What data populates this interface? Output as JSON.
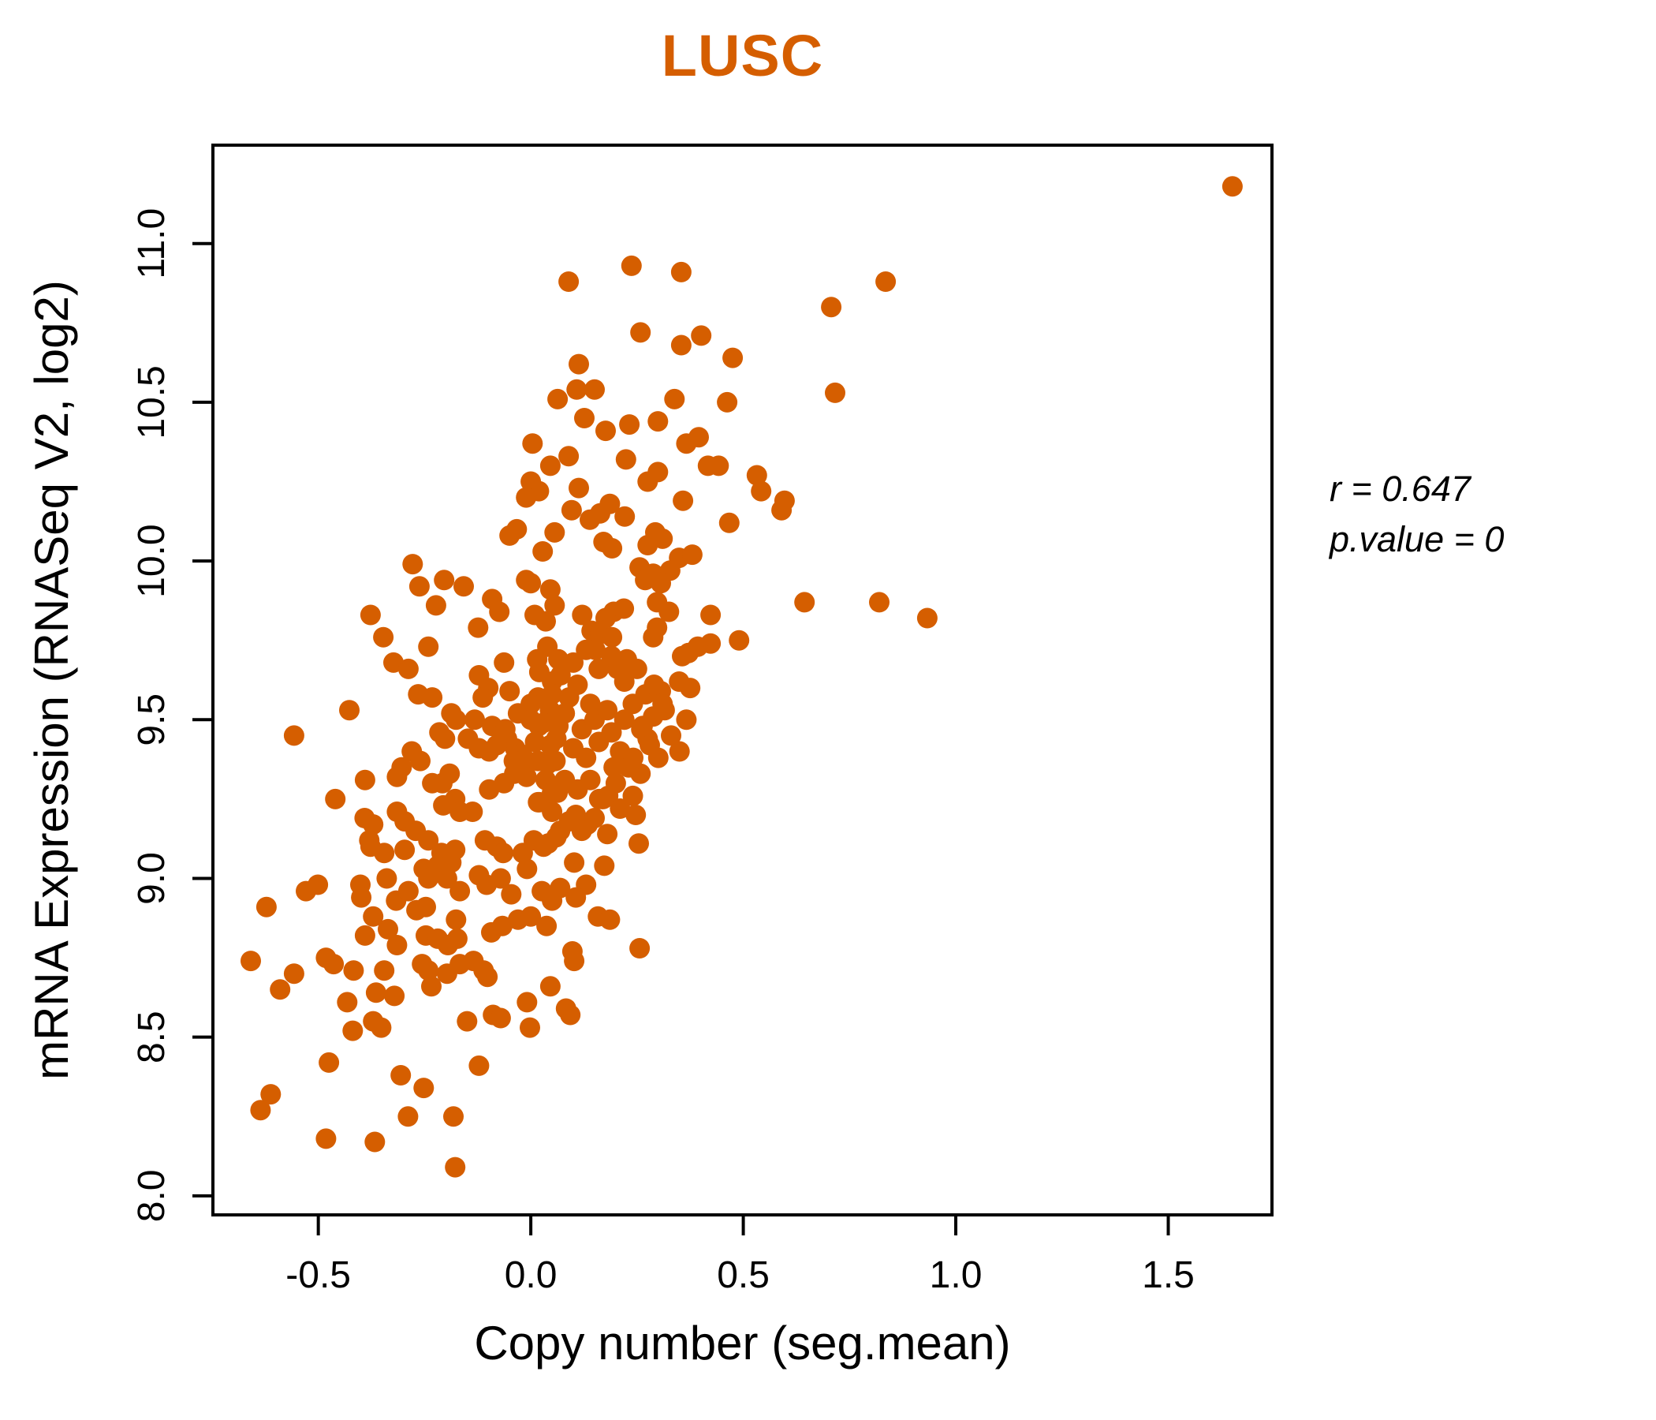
{
  "figure": {
    "title": "LUSC",
    "title_color": "#D55E00"
  },
  "chart_data": {
    "type": "scatter",
    "title": "LUSC",
    "xlabel": "Copy number (seg.mean)",
    "ylabel": "mRNA Expression (RNASeq V2, log2)",
    "x_ticks": {
      "values": [
        -0.5,
        0.0,
        0.5,
        1.0,
        1.5
      ],
      "labels": [
        "-0.5",
        "0.0",
        "0.5",
        "1.0",
        "1.5"
      ]
    },
    "y_ticks": {
      "values": [
        8.0,
        8.5,
        9.0,
        9.5,
        10.0,
        10.5,
        11.0
      ],
      "labels": [
        "8.0",
        "8.5",
        "9.0",
        "9.5",
        "10.0",
        "10.5",
        "11.0"
      ]
    },
    "xlim": [
      -0.748,
      1.744
    ],
    "ylim": [
      7.94,
      11.31
    ],
    "grid": false,
    "legend": "none",
    "point_color": "#D55E00",
    "axis_color": "#000000",
    "point_radius": 13,
    "annotation": {
      "r": 0.647,
      "p_value": 0,
      "r_label": "r = 0.647",
      "p_label": "p.value = 0"
    },
    "points": [
      [
        1.651,
        11.18
      ],
      [
        0.089,
        10.88
      ],
      [
        0.237,
        10.93
      ],
      [
        0.354,
        10.91
      ],
      [
        0.835,
        10.88
      ],
      [
        0.707,
        10.8
      ],
      [
        0.258,
        10.72
      ],
      [
        0.354,
        10.68
      ],
      [
        0.401,
        10.71
      ],
      [
        0.475,
        10.64
      ],
      [
        0.113,
        10.62
      ],
      [
        0.108,
        10.54
      ],
      [
        0.15,
        10.54
      ],
      [
        0.716,
        10.53
      ],
      [
        0.338,
        10.51
      ],
      [
        0.462,
        10.5
      ],
      [
        0.126,
        10.45
      ],
      [
        0.176,
        10.41
      ],
      [
        0.232,
        10.43
      ],
      [
        0.299,
        10.44
      ],
      [
        0.366,
        10.37
      ],
      [
        0.395,
        10.39
      ],
      [
        0.224,
        10.32
      ],
      [
        0.089,
        10.33
      ],
      [
        0.299,
        10.28
      ],
      [
        0.275,
        10.25
      ],
      [
        0.417,
        10.3
      ],
      [
        0.442,
        10.3
      ],
      [
        0.532,
        10.27
      ],
      [
        0.542,
        10.22
      ],
      [
        0.113,
        10.23
      ],
      [
        0.358,
        10.19
      ],
      [
        0.597,
        10.19
      ],
      [
        0.063,
        10.51
      ],
      [
        0.004,
        10.37
      ],
      [
        0.046,
        10.3
      ],
      [
        0.0,
        10.25
      ],
      [
        0.019,
        10.22
      ],
      [
        -0.011,
        10.2
      ],
      [
        -0.278,
        9.99
      ],
      [
        -0.262,
        9.92
      ],
      [
        -0.204,
        9.94
      ],
      [
        -0.223,
        9.86
      ],
      [
        -0.158,
        9.92
      ],
      [
        -0.377,
        9.83
      ],
      [
        -0.347,
        9.76
      ],
      [
        -0.124,
        9.79
      ],
      [
        -0.241,
        9.73
      ],
      [
        -0.323,
        9.68
      ],
      [
        -0.288,
        9.66
      ],
      [
        -0.063,
        9.68
      ],
      [
        -0.091,
        9.88
      ],
      [
        -0.074,
        9.84
      ],
      [
        -0.033,
        10.1
      ],
      [
        -0.05,
        10.08
      ],
      [
        0.056,
        10.09
      ],
      [
        0.028,
        10.03
      ],
      [
        0.0,
        9.93
      ],
      [
        0.046,
        9.91
      ],
      [
        -0.011,
        9.94
      ],
      [
        -0.232,
        9.57
      ],
      [
        -0.265,
        9.58
      ],
      [
        -0.187,
        9.52
      ],
      [
        -0.176,
        9.5
      ],
      [
        -0.215,
        9.46
      ],
      [
        -0.202,
        9.44
      ],
      [
        -0.122,
        9.64
      ],
      [
        -0.1,
        9.6
      ],
      [
        -0.113,
        9.57
      ],
      [
        -0.132,
        9.5
      ],
      [
        -0.091,
        9.48
      ],
      [
        -0.056,
        9.44
      ],
      [
        -0.037,
        9.41
      ],
      [
        -0.427,
        9.53
      ],
      [
        -0.557,
        9.45
      ],
      [
        -0.28,
        9.4
      ],
      [
        -0.26,
        9.37
      ],
      [
        -0.304,
        9.35
      ],
      [
        -0.315,
        9.32
      ],
      [
        -0.191,
        9.33
      ],
      [
        -0.208,
        9.3
      ],
      [
        -0.232,
        9.3
      ],
      [
        -0.39,
        9.31
      ],
      [
        -0.46,
        9.25
      ],
      [
        -0.391,
        9.19
      ],
      [
        -0.371,
        9.17
      ],
      [
        -0.38,
        9.12
      ],
      [
        -0.315,
        9.21
      ],
      [
        -0.297,
        9.18
      ],
      [
        -0.271,
        9.15
      ],
      [
        -0.241,
        9.12
      ],
      [
        -0.206,
        9.23
      ],
      [
        -0.178,
        9.25
      ],
      [
        -0.167,
        9.21
      ],
      [
        -0.137,
        9.21
      ],
      [
        -0.098,
        9.28
      ],
      [
        -0.063,
        9.3
      ],
      [
        -0.039,
        9.33
      ],
      [
        -0.019,
        9.36
      ],
      [
        -0.098,
        9.4
      ],
      [
        -0.148,
        9.44
      ],
      [
        -0.122,
        9.41
      ],
      [
        0.009,
        9.83
      ],
      [
        0.035,
        9.81
      ],
      [
        0.056,
        9.86
      ],
      [
        0.039,
        9.73
      ],
      [
        0.015,
        9.69
      ],
      [
        0.065,
        9.69
      ],
      [
        0.05,
        9.62
      ],
      [
        0.017,
        9.57
      ],
      [
        0.045,
        9.53
      ],
      [
        0.019,
        9.48
      ],
      [
        0.065,
        9.48
      ],
      [
        0.046,
        9.42
      ],
      [
        0.017,
        9.37
      ],
      [
        0.058,
        9.37
      ],
      [
        0.035,
        9.31
      ],
      [
        0.063,
        9.27
      ],
      [
        0.017,
        9.24
      ],
      [
        0.05,
        9.21
      ],
      [
        0.007,
        9.12
      ],
      [
        0.041,
        9.11
      ],
      [
        -0.019,
        9.08
      ],
      [
        0.069,
        9.15
      ],
      [
        -0.377,
        9.1
      ],
      [
        -0.345,
        9.08
      ],
      [
        -0.297,
        9.09
      ],
      [
        -0.21,
        9.08
      ],
      [
        -0.178,
        9.09
      ],
      [
        -0.108,
        9.12
      ],
      [
        -0.08,
        9.1
      ],
      [
        -0.065,
        9.08
      ],
      [
        0.644,
        9.87
      ],
      [
        0.82,
        9.87
      ],
      [
        0.933,
        9.82
      ],
      [
        0.423,
        9.83
      ],
      [
        0.49,
        9.75
      ],
      [
        0.467,
        10.12
      ],
      [
        0.59,
        10.16
      ],
      [
        0.293,
        10.09
      ],
      [
        0.31,
        10.07
      ],
      [
        0.275,
        10.05
      ],
      [
        0.349,
        10.01
      ],
      [
        0.38,
        10.02
      ],
      [
        0.256,
        9.98
      ],
      [
        0.288,
        9.96
      ],
      [
        0.328,
        9.97
      ],
      [
        0.306,
        9.93
      ],
      [
        0.269,
        9.94
      ],
      [
        0.186,
        10.18
      ],
      [
        0.221,
        10.14
      ],
      [
        0.163,
        10.15
      ],
      [
        0.139,
        10.13
      ],
      [
        0.096,
        10.16
      ],
      [
        0.171,
        10.06
      ],
      [
        0.191,
        10.04
      ],
      [
        0.297,
        9.87
      ],
      [
        0.325,
        9.84
      ],
      [
        0.297,
        9.79
      ],
      [
        0.288,
        9.76
      ],
      [
        0.423,
        9.74
      ],
      [
        0.371,
        9.71
      ],
      [
        0.393,
        9.73
      ],
      [
        0.226,
        9.69
      ],
      [
        0.204,
        9.66
      ],
      [
        0.356,
        9.7
      ],
      [
        0.195,
        9.84
      ],
      [
        0.176,
        9.82
      ],
      [
        0.219,
        9.85
      ],
      [
        0.143,
        9.78
      ],
      [
        0.121,
        9.83
      ],
      [
        0.163,
        9.77
      ],
      [
        0.191,
        9.76
      ],
      [
        0.152,
        9.72
      ],
      [
        0.306,
        9.59
      ],
      [
        0.349,
        9.62
      ],
      [
        0.375,
        9.6
      ],
      [
        0.315,
        9.53
      ],
      [
        0.288,
        9.51
      ],
      [
        0.366,
        9.5
      ],
      [
        0.263,
        9.48
      ],
      [
        0.275,
        9.44
      ],
      [
        0.241,
        9.38
      ],
      [
        0.258,
        9.33
      ],
      [
        0.195,
        9.35
      ],
      [
        0.161,
        9.25
      ],
      [
        0.182,
        9.26
      ],
      [
        0.247,
        9.2
      ],
      [
        0.134,
        9.17
      ],
      [
        0.106,
        9.2
      ],
      [
        0.254,
        9.11
      ],
      [
        -0.622,
        8.91
      ],
      [
        -0.529,
        8.96
      ],
      [
        -0.501,
        8.98
      ],
      [
        -0.401,
        8.98
      ],
      [
        -0.399,
        8.94
      ],
      [
        -0.371,
        8.88
      ],
      [
        -0.339,
        9.0
      ],
      [
        -0.317,
        8.93
      ],
      [
        -0.288,
        8.96
      ],
      [
        -0.252,
        9.03
      ],
      [
        -0.241,
        9.0
      ],
      [
        -0.219,
        9.04
      ],
      [
        -0.187,
        9.05
      ],
      [
        -0.197,
        9.0
      ],
      [
        -0.167,
        8.96
      ],
      [
        -0.269,
        8.9
      ],
      [
        -0.247,
        8.91
      ],
      [
        -0.176,
        8.87
      ],
      [
        -0.122,
        9.01
      ],
      [
        -0.104,
        8.98
      ],
      [
        -0.071,
        9.0
      ],
      [
        -0.046,
        8.95
      ],
      [
        -0.03,
        8.87
      ],
      [
        -0.009,
        9.03
      ],
      [
        0.026,
        8.96
      ],
      [
        0.05,
        8.93
      ],
      [
        0.069,
        8.97
      ],
      [
        0.0,
        8.88
      ],
      [
        0.037,
        8.85
      ],
      [
        -0.39,
        8.82
      ],
      [
        -0.336,
        8.84
      ],
      [
        -0.315,
        8.79
      ],
      [
        -0.247,
        8.82
      ],
      [
        -0.219,
        8.81
      ],
      [
        -0.195,
        8.79
      ],
      [
        -0.173,
        8.81
      ],
      [
        -0.093,
        8.83
      ],
      [
        -0.067,
        8.85
      ],
      [
        -0.659,
        8.74
      ],
      [
        -0.557,
        8.7
      ],
      [
        -0.59,
        8.65
      ],
      [
        -0.482,
        8.75
      ],
      [
        -0.464,
        8.73
      ],
      [
        -0.417,
        8.71
      ],
      [
        -0.345,
        8.71
      ],
      [
        -0.256,
        8.73
      ],
      [
        -0.241,
        8.71
      ],
      [
        -0.234,
        8.66
      ],
      [
        -0.197,
        8.7
      ],
      [
        -0.167,
        8.73
      ],
      [
        -0.135,
        8.74
      ],
      [
        -0.111,
        8.71
      ],
      [
        -0.102,
        8.69
      ],
      [
        -0.321,
        8.63
      ],
      [
        -0.364,
        8.64
      ],
      [
        -0.432,
        8.61
      ],
      [
        -0.371,
        8.55
      ],
      [
        -0.352,
        8.53
      ],
      [
        -0.419,
        8.52
      ],
      [
        -0.15,
        8.55
      ],
      [
        -0.089,
        8.57
      ],
      [
        -0.071,
        8.56
      ],
      [
        -0.009,
        8.61
      ],
      [
        -0.002,
        8.53
      ],
      [
        0.046,
        8.66
      ],
      [
        0.083,
        8.59
      ],
      [
        -0.475,
        8.42
      ],
      [
        -0.306,
        8.38
      ],
      [
        -0.252,
        8.34
      ],
      [
        -0.612,
        8.32
      ],
      [
        -0.636,
        8.27
      ],
      [
        -0.122,
        8.41
      ],
      [
        -0.289,
        8.25
      ],
      [
        -0.182,
        8.25
      ],
      [
        -0.482,
        8.18
      ],
      [
        -0.367,
        8.17
      ],
      [
        -0.178,
        8.09
      ],
      [
        0.173,
        9.04
      ],
      [
        0.102,
        9.05
      ],
      [
        0.13,
        8.98
      ],
      [
        0.106,
        8.94
      ],
      [
        0.158,
        8.88
      ],
      [
        0.186,
        8.87
      ],
      [
        0.256,
        8.78
      ],
      [
        0.098,
        8.77
      ],
      [
        0.102,
        8.74
      ],
      [
        0.093,
        8.57
      ],
      [
        0.02,
        9.65
      ],
      [
        0.05,
        9.58
      ],
      [
        0.08,
        9.52
      ],
      [
        0.11,
        9.61
      ],
      [
        0.14,
        9.55
      ],
      [
        0.03,
        9.49
      ],
      [
        0.06,
        9.44
      ],
      [
        0.09,
        9.57
      ],
      [
        0.12,
        9.47
      ],
      [
        0.15,
        9.5
      ],
      [
        0.18,
        9.53
      ],
      [
        0.0,
        9.55
      ],
      [
        -0.03,
        9.52
      ],
      [
        -0.05,
        9.59
      ],
      [
        0.07,
        9.64
      ],
      [
        0.1,
        9.41
      ],
      [
        0.13,
        9.38
      ],
      [
        0.04,
        9.36
      ],
      [
        0.01,
        9.43
      ],
      [
        -0.02,
        9.39
      ],
      [
        0.16,
        9.43
      ],
      [
        0.19,
        9.46
      ],
      [
        0.21,
        9.4
      ],
      [
        0.08,
        9.31
      ],
      [
        0.05,
        9.27
      ],
      [
        0.02,
        9.24
      ],
      [
        0.11,
        9.28
      ],
      [
        0.14,
        9.31
      ],
      [
        0.17,
        9.25
      ],
      [
        0.2,
        9.3
      ],
      [
        0.23,
        9.35
      ],
      [
        0.09,
        9.18
      ],
      [
        0.12,
        9.15
      ],
      [
        0.06,
        9.13
      ],
      [
        0.03,
        9.1
      ],
      [
        0.15,
        9.19
      ],
      [
        0.18,
        9.14
      ],
      [
        0.21,
        9.22
      ],
      [
        0.24,
        9.26
      ],
      [
        0.26,
        9.47
      ],
      [
        0.28,
        9.42
      ],
      [
        0.3,
        9.38
      ],
      [
        0.24,
        9.55
      ],
      [
        0.27,
        9.58
      ],
      [
        0.22,
        9.62
      ],
      [
        0.25,
        9.66
      ],
      [
        0.29,
        9.61
      ],
      [
        0.31,
        9.55
      ],
      [
        0.33,
        9.45
      ],
      [
        0.35,
        9.4
      ],
      [
        0.1,
        9.68
      ],
      [
        0.13,
        9.72
      ],
      [
        0.16,
        9.66
      ],
      [
        0.19,
        9.7
      ],
      [
        -0.06,
        9.47
      ],
      [
        -0.08,
        9.42
      ],
      [
        -0.04,
        9.37
      ],
      [
        -0.01,
        9.32
      ],
      [
        0.0,
        9.5
      ],
      [
        0.22,
        9.5
      ]
    ]
  }
}
